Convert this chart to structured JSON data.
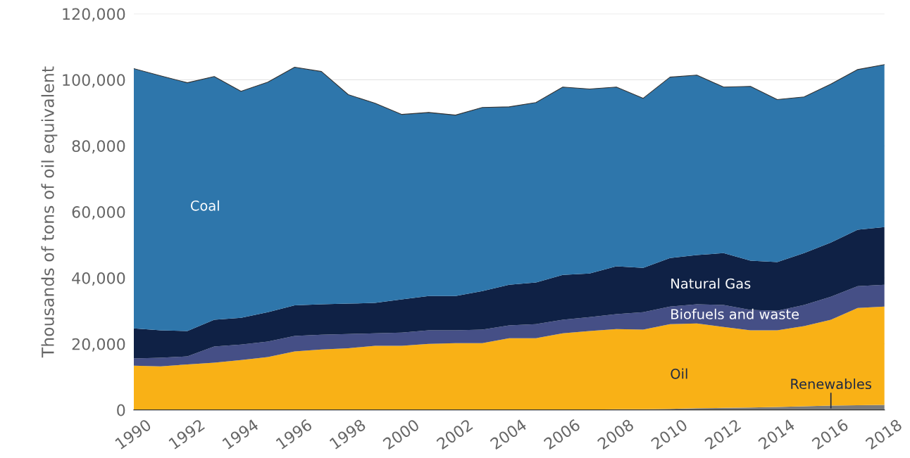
{
  "chart_data": {
    "type": "area",
    "stacked": true,
    "ylabel": "Thousands of tons of oil equivalent",
    "x": [
      1990,
      1991,
      1992,
      1993,
      1994,
      1995,
      1996,
      1997,
      1998,
      1999,
      2000,
      2001,
      2002,
      2003,
      2004,
      2005,
      2006,
      2007,
      2008,
      2009,
      2010,
      2011,
      2012,
      2013,
      2014,
      2015,
      2016,
      2017,
      2018
    ],
    "series": [
      {
        "name": "Renewables",
        "color": "#7a7a7a",
        "values": [
          100,
          100,
          100,
          100,
          100,
          100,
          100,
          100,
          100,
          100,
          100,
          100,
          100,
          100,
          100,
          100,
          100,
          100,
          200,
          200,
          300,
          500,
          600,
          700,
          900,
          1100,
          1300,
          1400,
          1500
        ]
      },
      {
        "name": "Oil",
        "color": "#f9b116",
        "values": [
          13300,
          13100,
          13700,
          14200,
          15000,
          15900,
          17600,
          18200,
          18600,
          19300,
          19300,
          19900,
          20100,
          20100,
          21600,
          21600,
          23100,
          23800,
          24300,
          24100,
          25700,
          25700,
          24500,
          23400,
          23200,
          24300,
          26000,
          29500,
          29800
        ]
      },
      {
        "name": "Biofuels and waste",
        "color": "#454f86",
        "values": [
          2200,
          2600,
          2400,
          4900,
          4700,
          4700,
          4700,
          4500,
          4300,
          3800,
          4000,
          4100,
          3900,
          4100,
          3900,
          4300,
          4100,
          4200,
          4500,
          5300,
          5300,
          5800,
          6700,
          6200,
          5900,
          6400,
          7000,
          6600,
          6600
        ]
      },
      {
        "name": "Natural Gas",
        "color": "#0f2145",
        "values": [
          9100,
          8300,
          7700,
          8100,
          8100,
          8900,
          9300,
          9200,
          9200,
          9200,
          10100,
          10400,
          10400,
          11700,
          12300,
          12600,
          13600,
          13200,
          14500,
          13400,
          14700,
          14900,
          15700,
          14900,
          14800,
          15700,
          16400,
          17100,
          17500
        ]
      },
      {
        "name": "Coal",
        "color": "#2e76ab",
        "values": [
          78700,
          77100,
          75200,
          73700,
          68600,
          69700,
          72100,
          70500,
          63300,
          60500,
          56000,
          55600,
          54800,
          55600,
          53900,
          54500,
          56900,
          55900,
          54300,
          51400,
          54800,
          54500,
          50300,
          52800,
          49200,
          47300,
          48000,
          48500,
          49200
        ]
      }
    ],
    "xlim": [
      1990,
      2018
    ],
    "xticks": [
      1990,
      1992,
      1994,
      1996,
      1998,
      2000,
      2002,
      2004,
      2006,
      2008,
      2010,
      2012,
      2014,
      2016,
      2018
    ],
    "ylim": [
      0,
      120000
    ],
    "yticks": [
      {
        "value": 0,
        "label": "0"
      },
      {
        "value": 20000,
        "label": "20,000"
      },
      {
        "value": 40000,
        "label": "40,000"
      },
      {
        "value": 60000,
        "label": "60,000"
      },
      {
        "value": 80000,
        "label": "80,000"
      },
      {
        "value": 100000,
        "label": "100,000"
      },
      {
        "value": 120000,
        "label": "120,000"
      }
    ],
    "grid": "y",
    "legend": false
  }
}
